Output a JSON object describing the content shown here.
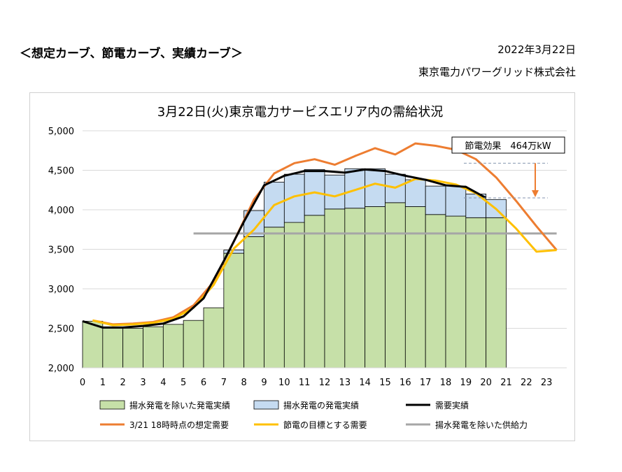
{
  "header": {
    "heading": "＜想定カーブ、節電カーブ、実績カーブ＞",
    "date": "2022年3月22日",
    "organization": "東京電力パワーグリッド株式会社"
  },
  "chart_data": {
    "type": "bar",
    "title": "3月22日(火)東京電力サービスエリア内の需給状況",
    "xlabel": "",
    "ylabel": "",
    "x_ticks": [
      "0",
      "1",
      "2",
      "3",
      "4",
      "5",
      "6",
      "7",
      "8",
      "9",
      "10",
      "11",
      "12",
      "13",
      "14",
      "15",
      "16",
      "17",
      "18",
      "19",
      "20",
      "21",
      "22",
      "23"
    ],
    "ylim": [
      2000,
      5000
    ],
    "y_ticks": [
      2000,
      2500,
      3000,
      3500,
      4000,
      4500,
      5000
    ],
    "y_tick_labels": [
      "2,000",
      "2,500",
      "3,000",
      "3,500",
      "4,000",
      "4,500",
      "5,000"
    ],
    "grid": "horizontal",
    "legend_position": "bottom",
    "colors": {
      "generation_excl_pumped": "#c6e0a8",
      "pumped_storage": "#c5dbf1",
      "demand_actual": "#000000",
      "assumed_demand": "#ed7d31",
      "target_demand": "#ffc000",
      "supply_capacity": "#a6a6a6",
      "callout_arrow": "#ed7d31"
    },
    "series": [
      {
        "name": "揚水発電を除いた発電実績",
        "kind": "stacked_bar",
        "x": [
          0,
          1,
          2,
          3,
          4,
          5,
          6,
          7,
          8,
          9,
          10,
          11,
          12,
          13,
          14,
          15,
          16,
          17,
          18,
          19,
          20
        ],
        "values": [
          2590,
          2500,
          2500,
          2520,
          2550,
          2600,
          2760,
          3450,
          3660,
          3780,
          3840,
          3930,
          4010,
          4020,
          4040,
          4090,
          4040,
          3940,
          3920,
          3900,
          3900
        ]
      },
      {
        "name": "揚水発電の発電実績",
        "kind": "stacked_bar",
        "x": [
          0,
          1,
          2,
          3,
          4,
          5,
          6,
          7,
          8,
          9,
          10,
          11,
          12,
          13,
          14,
          15,
          16,
          17,
          18,
          19,
          20
        ],
        "values": [
          0,
          0,
          0,
          0,
          0,
          0,
          0,
          40,
          330,
          570,
          610,
          580,
          430,
          500,
          480,
          360,
          340,
          360,
          380,
          300,
          230
        ]
      },
      {
        "name": "需要実績",
        "kind": "line",
        "x": [
          0,
          1,
          2,
          3,
          4,
          5,
          6,
          7,
          8,
          9,
          10,
          11,
          12,
          13,
          14,
          15,
          16,
          17,
          18,
          19,
          20
        ],
        "values": [
          2590,
          2510,
          2510,
          2530,
          2560,
          2650,
          2880,
          3350,
          3850,
          4310,
          4430,
          4490,
          4490,
          4470,
          4510,
          4490,
          4430,
          4380,
          4310,
          4290,
          4150
        ]
      },
      {
        "name": "3/21 18時時点の想定需要",
        "kind": "line",
        "x": [
          0.5,
          1.5,
          2.5,
          3.5,
          4.5,
          5.5,
          6.5,
          7.5,
          8.5,
          9.5,
          10.5,
          11.5,
          12.5,
          13.5,
          14.5,
          15.5,
          16.5,
          17.5,
          18.5,
          19.5,
          20.5,
          21.5,
          22.5,
          23.5
        ],
        "values": [
          2600,
          2550,
          2560,
          2580,
          2640,
          2790,
          3090,
          3600,
          4130,
          4460,
          4590,
          4640,
          4570,
          4680,
          4780,
          4700,
          4840,
          4810,
          4760,
          4640,
          4410,
          4110,
          3790,
          3490
        ]
      },
      {
        "name": "節電の目標とする需要",
        "kind": "line",
        "x": [
          0.5,
          1.5,
          2.5,
          3.5,
          4.5,
          5.5,
          6.5,
          7.5,
          8.5,
          9.5,
          10.5,
          11.5,
          12.5,
          13.5,
          14.5,
          15.5,
          16.5,
          17.5,
          18.5,
          19.5,
          20.5,
          21.5,
          22.5,
          23.5
        ],
        "values": [
          2600,
          2540,
          2550,
          2570,
          2620,
          2760,
          3050,
          3510,
          3750,
          4060,
          4170,
          4220,
          4170,
          4250,
          4330,
          4280,
          4390,
          4370,
          4320,
          4210,
          4010,
          3760,
          3470,
          3490
        ]
      },
      {
        "name": "揚水発電を除いた供給力",
        "kind": "line",
        "x": [
          5.5,
          23.5
        ],
        "values": [
          3700,
          3700
        ]
      }
    ],
    "annotations": [
      {
        "text": "節電効果　464万kW",
        "kind": "callout"
      }
    ]
  }
}
